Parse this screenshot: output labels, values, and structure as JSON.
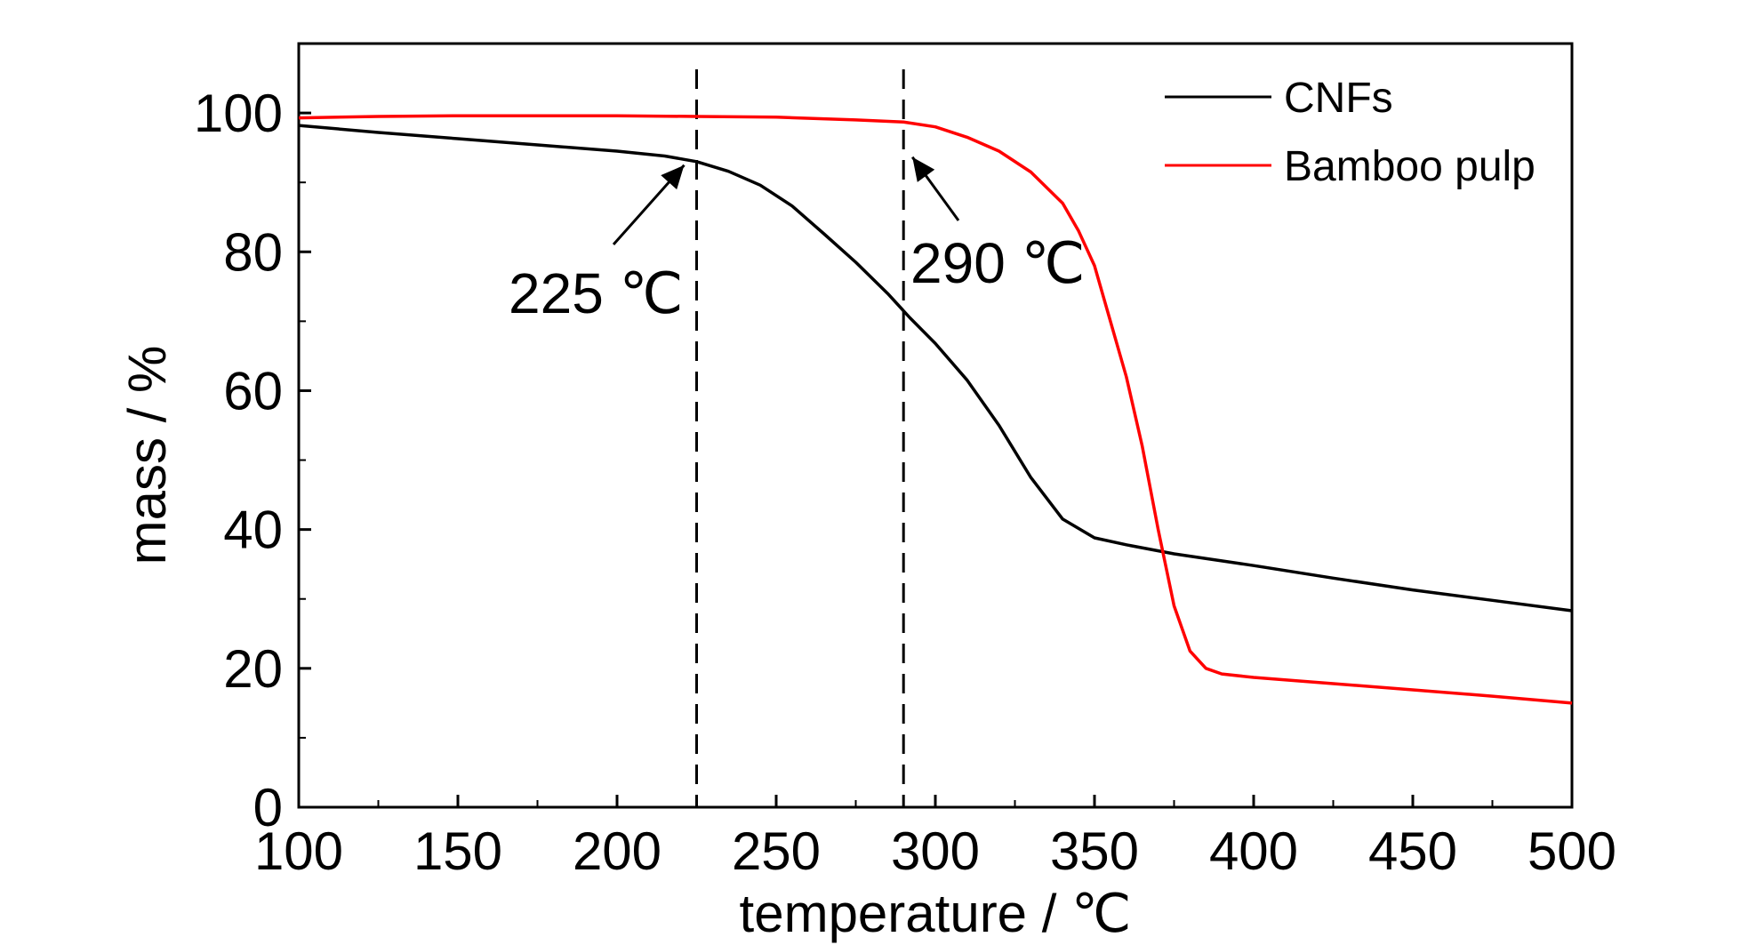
{
  "chart_data": {
    "type": "line",
    "title": "",
    "xlabel": "temperature / ℃",
    "ylabel": "mass / %",
    "xlim": [
      100,
      500
    ],
    "ylim": [
      0,
      110
    ],
    "x_ticks": [
      100,
      150,
      200,
      250,
      300,
      350,
      400,
      450,
      500
    ],
    "y_ticks": [
      0,
      20,
      40,
      60,
      80,
      100
    ],
    "grid": false,
    "legend_position": "top-right",
    "series": [
      {
        "name": "CNFs",
        "color": "#000000",
        "points": [
          [
            100,
            98.2
          ],
          [
            125,
            97.2
          ],
          [
            150,
            96.3
          ],
          [
            175,
            95.4
          ],
          [
            200,
            94.5
          ],
          [
            215,
            93.8
          ],
          [
            225,
            93.0
          ],
          [
            235,
            91.6
          ],
          [
            245,
            89.6
          ],
          [
            255,
            86.6
          ],
          [
            265,
            82.6
          ],
          [
            275,
            78.5
          ],
          [
            285,
            74.0
          ],
          [
            292,
            70.5
          ],
          [
            300,
            66.8
          ],
          [
            310,
            61.5
          ],
          [
            320,
            55.0
          ],
          [
            330,
            47.5
          ],
          [
            340,
            41.5
          ],
          [
            350,
            38.8
          ],
          [
            360,
            37.8
          ],
          [
            375,
            36.5
          ],
          [
            400,
            34.8
          ],
          [
            425,
            33.0
          ],
          [
            450,
            31.3
          ],
          [
            475,
            29.8
          ],
          [
            500,
            28.3
          ]
        ]
      },
      {
        "name": "Bamboo pulp",
        "color": "#ff0000",
        "points": [
          [
            100,
            99.3
          ],
          [
            125,
            99.5
          ],
          [
            150,
            99.6
          ],
          [
            175,
            99.6
          ],
          [
            200,
            99.6
          ],
          [
            225,
            99.5
          ],
          [
            250,
            99.4
          ],
          [
            275,
            99.0
          ],
          [
            290,
            98.7
          ],
          [
            300,
            98.0
          ],
          [
            310,
            96.5
          ],
          [
            320,
            94.5
          ],
          [
            330,
            91.5
          ],
          [
            340,
            87.0
          ],
          [
            345,
            83.0
          ],
          [
            350,
            78.0
          ],
          [
            355,
            70.0
          ],
          [
            360,
            62.0
          ],
          [
            365,
            52.0
          ],
          [
            370,
            40.0
          ],
          [
            375,
            29.0
          ],
          [
            380,
            22.5
          ],
          [
            385,
            20.0
          ],
          [
            390,
            19.2
          ],
          [
            400,
            18.7
          ],
          [
            425,
            17.8
          ],
          [
            450,
            16.9
          ],
          [
            475,
            16.0
          ],
          [
            500,
            15.0
          ]
        ]
      }
    ],
    "reference_lines": [
      {
        "x": 225,
        "style": "dashed"
      },
      {
        "x": 290,
        "style": "dashed"
      }
    ],
    "annotations": [
      {
        "text": "225 ℃",
        "x": 225,
        "y": 93
      },
      {
        "text": "290 ℃",
        "x": 290,
        "y": 98.5
      }
    ]
  }
}
